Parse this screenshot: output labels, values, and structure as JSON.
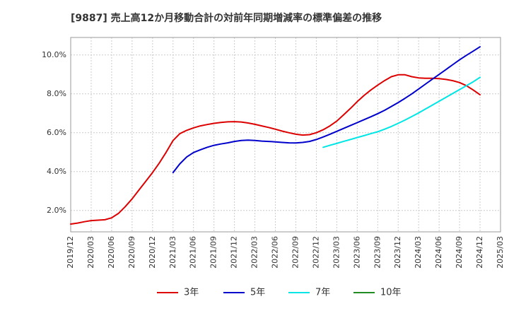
{
  "chart_data": {
    "type": "line",
    "title": "[9887]  売上高12か月移動合計の対前年同期増減率の標準偏差の推移",
    "xlabel": "",
    "ylabel": "",
    "x_ticks": [
      "2019/12",
      "2020/03",
      "2020/06",
      "2020/09",
      "2020/12",
      "2021/03",
      "2021/06",
      "2021/09",
      "2021/12",
      "2022/03",
      "2022/06",
      "2022/09",
      "2022/12",
      "2023/03",
      "2023/06",
      "2023/09",
      "2023/12",
      "2024/03",
      "2024/06",
      "2024/09",
      "2024/12",
      "2025/03"
    ],
    "y_ticks": [
      "2.0%",
      "4.0%",
      "6.0%",
      "8.0%",
      "10.0%"
    ],
    "y_tick_values": [
      2,
      4,
      6,
      8,
      10
    ],
    "ylim": [
      0.9,
      10.9
    ],
    "grid": true,
    "legend_position": "bottom",
    "series": [
      {
        "name": "3年",
        "color": "#dd0000",
        "x": [
          "2019/12",
          "2020/01",
          "2020/02",
          "2020/03",
          "2020/04",
          "2020/05",
          "2020/06",
          "2020/07",
          "2020/08",
          "2020/09",
          "2020/10",
          "2020/11",
          "2020/12",
          "2021/01",
          "2021/02",
          "2021/03",
          "2021/04",
          "2021/05",
          "2021/06",
          "2021/07",
          "2021/08",
          "2021/09",
          "2021/10",
          "2021/11",
          "2021/12",
          "2022/01",
          "2022/02",
          "2022/03",
          "2022/04",
          "2022/05",
          "2022/06",
          "2022/07",
          "2022/08",
          "2022/09",
          "2022/10",
          "2022/11",
          "2022/12",
          "2023/01",
          "2023/02",
          "2023/03",
          "2023/04",
          "2023/05",
          "2023/06",
          "2023/07",
          "2023/08",
          "2023/09",
          "2023/10",
          "2023/11",
          "2023/12",
          "2024/01",
          "2024/02",
          "2024/03",
          "2024/04",
          "2024/05",
          "2024/06",
          "2024/07",
          "2024/08",
          "2024/09",
          "2024/10",
          "2024/11",
          "2024/12"
        ],
        "values": [
          1.3,
          1.35,
          1.42,
          1.48,
          1.5,
          1.52,
          1.62,
          1.85,
          2.2,
          2.6,
          3.05,
          3.5,
          3.95,
          4.45,
          5.0,
          5.6,
          5.95,
          6.12,
          6.25,
          6.35,
          6.42,
          6.48,
          6.53,
          6.56,
          6.57,
          6.55,
          6.5,
          6.43,
          6.35,
          6.27,
          6.18,
          6.08,
          6.0,
          5.92,
          5.88,
          5.9,
          6.0,
          6.15,
          6.35,
          6.6,
          6.92,
          7.25,
          7.6,
          7.92,
          8.2,
          8.45,
          8.68,
          8.88,
          8.98,
          8.98,
          8.88,
          8.82,
          8.8,
          8.8,
          8.78,
          8.74,
          8.68,
          8.58,
          8.42,
          8.2,
          7.95
        ]
      },
      {
        "name": "5年",
        "color": "#0000cc",
        "x": [
          "2021/03",
          "2021/04",
          "2021/05",
          "2021/06",
          "2021/07",
          "2021/08",
          "2021/09",
          "2021/10",
          "2021/11",
          "2021/12",
          "2022/01",
          "2022/02",
          "2022/03",
          "2022/04",
          "2022/05",
          "2022/06",
          "2022/07",
          "2022/08",
          "2022/09",
          "2022/10",
          "2022/11",
          "2022/12",
          "2023/01",
          "2023/02",
          "2023/03",
          "2023/04",
          "2023/05",
          "2023/06",
          "2023/07",
          "2023/08",
          "2023/09",
          "2023/10",
          "2023/11",
          "2023/12",
          "2024/01",
          "2024/02",
          "2024/03",
          "2024/04",
          "2024/05",
          "2024/06",
          "2024/07",
          "2024/08",
          "2024/09",
          "2024/10",
          "2024/11",
          "2024/12"
        ],
        "values": [
          3.95,
          4.4,
          4.75,
          4.98,
          5.12,
          5.25,
          5.35,
          5.42,
          5.48,
          5.55,
          5.6,
          5.62,
          5.6,
          5.57,
          5.55,
          5.53,
          5.5,
          5.48,
          5.47,
          5.5,
          5.55,
          5.65,
          5.78,
          5.92,
          6.07,
          6.22,
          6.37,
          6.52,
          6.67,
          6.82,
          6.98,
          7.15,
          7.35,
          7.55,
          7.77,
          8.0,
          8.25,
          8.5,
          8.75,
          9.0,
          9.25,
          9.5,
          9.75,
          9.98,
          10.2,
          10.42
        ]
      },
      {
        "name": "7年",
        "color": "#00e5e5",
        "x": [
          "2023/01",
          "2023/02",
          "2023/03",
          "2023/04",
          "2023/05",
          "2023/06",
          "2023/07",
          "2023/08",
          "2023/09",
          "2023/10",
          "2023/11",
          "2023/12",
          "2024/01",
          "2024/02",
          "2024/03",
          "2024/04",
          "2024/05",
          "2024/06",
          "2024/07",
          "2024/08",
          "2024/09",
          "2024/10",
          "2024/11",
          "2024/12"
        ],
        "values": [
          5.25,
          5.35,
          5.45,
          5.55,
          5.65,
          5.75,
          5.85,
          5.95,
          6.05,
          6.18,
          6.32,
          6.48,
          6.65,
          6.83,
          7.02,
          7.22,
          7.42,
          7.62,
          7.82,
          8.02,
          8.22,
          8.42,
          8.62,
          8.85
        ]
      },
      {
        "name": "10年",
        "color": "#228b22",
        "x": [],
        "values": []
      }
    ]
  }
}
